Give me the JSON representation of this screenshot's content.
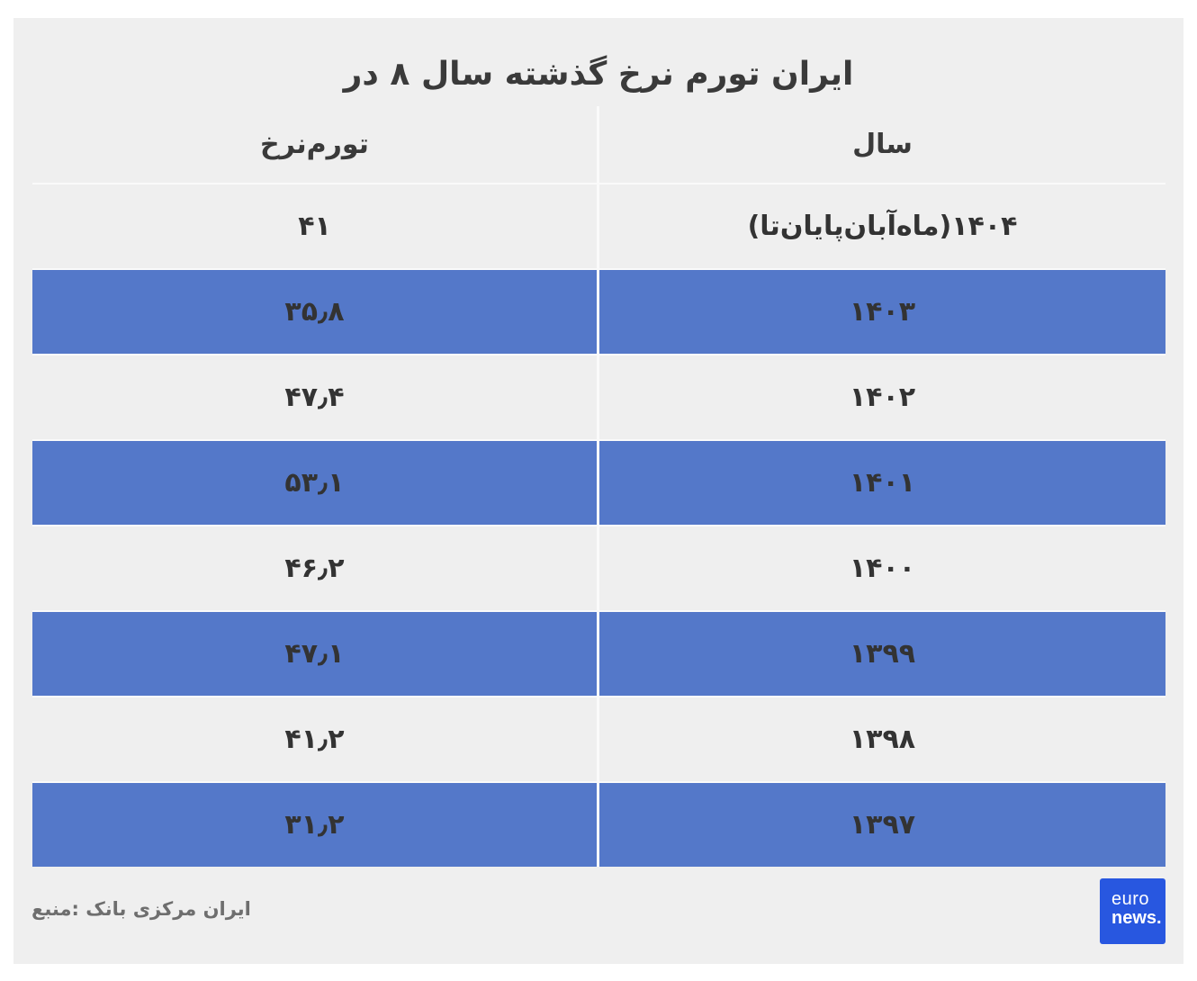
{
  "title": "در ۸ سال گذشته نرخ تورم ایران",
  "table": {
    "col_rate": "نرخ تورم",
    "col_year": "سال",
    "rows": [
      {
        "year": "(تا پایان آبان ماه) ۱۴۰۴",
        "rate": "۴۱",
        "highlight": false
      },
      {
        "year": "۱۴۰۳",
        "rate": "۳۵٫۸",
        "highlight": true
      },
      {
        "year": "۱۴۰۲",
        "rate": "۴۷٫۴",
        "highlight": false
      },
      {
        "year": "۱۴۰۱",
        "rate": "۵۳٫۱",
        "highlight": true
      },
      {
        "year": "۱۴۰۰",
        "rate": "۴۶٫۲",
        "highlight": false
      },
      {
        "year": "۱۳۹۹",
        "rate": "۴۷٫۱",
        "highlight": true
      },
      {
        "year": "۱۳۹۸",
        "rate": "۴۱٫۲",
        "highlight": false
      },
      {
        "year": "۱۳۹۷",
        "rate": "۳۱٫۲",
        "highlight": true
      }
    ]
  },
  "footer": {
    "source": "منبع: بانک مرکزی ایران"
  },
  "logo": {
    "line1": "euro",
    "line2": "news."
  },
  "colors": {
    "card_bg": "#efefef",
    "row_highlight": "#5478c9",
    "divider": "#fafafa",
    "text": "#3a3a3a",
    "source_text": "#6e6e6e",
    "logo_bg": "#2857e0"
  },
  "chart_data": {
    "type": "table",
    "title": "نرخ تورم ایران در ۸ سال گذشته",
    "title_en": "Iran inflation rate over the past 8 years",
    "columns": [
      "سال",
      "نرخ تورم"
    ],
    "years": [
      1404,
      1403,
      1402,
      1401,
      1400,
      1399,
      1398,
      1397
    ],
    "values": [
      41,
      35.8,
      47.4,
      53.1,
      46.2,
      47.1,
      41.2,
      31.2
    ],
    "year_note_1404": "تا پایان آبان ماه",
    "source": "بانک مرکزی ایران"
  }
}
